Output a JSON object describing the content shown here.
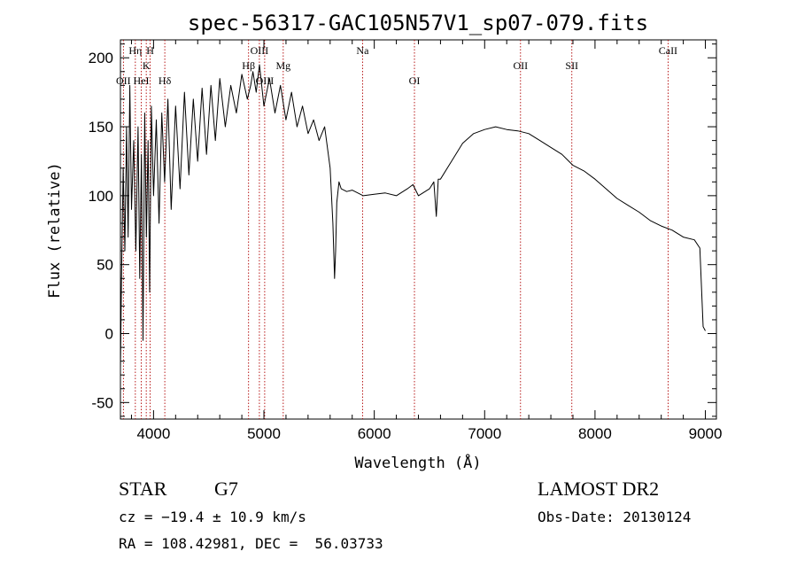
{
  "chart_data": {
    "type": "line",
    "title": "spec-56317-GAC105N57V1_sp07-079.fits",
    "xlabel": "Wavelength (Å)",
    "ylabel": "Flux (relative)",
    "xlim": [
      3700,
      9100
    ],
    "ylim": [
      -62,
      213
    ],
    "xticks": [
      4000,
      5000,
      6000,
      7000,
      8000,
      9000
    ],
    "yticks": [
      -50,
      0,
      50,
      100,
      150,
      200
    ],
    "grid": false,
    "series": [
      {
        "x": [
          3700,
          3710,
          3725,
          3740,
          3755,
          3770,
          3785,
          3800,
          3820,
          3840,
          3860,
          3875,
          3890,
          3905,
          3920,
          3935,
          3950,
          3965,
          3980,
          4000,
          4025,
          4050,
          4075,
          4100,
          4130,
          4160,
          4200,
          4240,
          4280,
          4320,
          4360,
          4400,
          4440,
          4480,
          4520,
          4560,
          4600,
          4650,
          4700,
          4750,
          4800,
          4850,
          4880,
          4900,
          4930,
          4960,
          5000,
          5050,
          5100,
          5150,
          5200,
          5250,
          5300,
          5350,
          5400,
          5450,
          5500,
          5550,
          5600,
          5625,
          5640,
          5650,
          5660,
          5680,
          5700,
          5750,
          5800,
          5900,
          6000,
          6100,
          6200,
          6300,
          6350,
          6400,
          6500,
          6540,
          6562,
          6580,
          6600,
          6700,
          6800,
          6900,
          7000,
          7100,
          7200,
          7300,
          7400,
          7500,
          7600,
          7700,
          7800,
          7900,
          8000,
          8100,
          8200,
          8300,
          8400,
          8500,
          8600,
          8700,
          8800,
          8900,
          8950,
          8980,
          9000
        ],
        "y": [
          -25,
          40,
          120,
          60,
          150,
          70,
          180,
          90,
          140,
          60,
          150,
          40,
          130,
          -5,
          160,
          70,
          140,
          30,
          165,
          100,
          155,
          80,
          160,
          110,
          170,
          90,
          165,
          105,
          175,
          115,
          170,
          125,
          178,
          130,
          180,
          140,
          185,
          150,
          180,
          160,
          188,
          170,
          180,
          190,
          175,
          195,
          165,
          185,
          160,
          180,
          155,
          175,
          150,
          165,
          145,
          155,
          140,
          150,
          120,
          80,
          40,
          60,
          95,
          110,
          105,
          103,
          104,
          100,
          101,
          102,
          100,
          105,
          108,
          100,
          105,
          110,
          85,
          112,
          112,
          125,
          138,
          145,
          148,
          150,
          148,
          147,
          145,
          140,
          135,
          130,
          122,
          118,
          112,
          105,
          98,
          93,
          88,
          82,
          78,
          75,
          70,
          68,
          62,
          5,
          2
        ]
      }
    ],
    "spectral_lines": [
      {
        "label": "OII",
        "x": 3727,
        "row": 3
      },
      {
        "label": "Hη",
        "x": 3835,
        "row": 1
      },
      {
        "label": "HeI",
        "x": 3889,
        "row": 3
      },
      {
        "label": "K",
        "x": 3934,
        "row": 2
      },
      {
        "label": "H",
        "x": 3969,
        "row": 1
      },
      {
        "label": "Hδ",
        "x": 4102,
        "row": 3
      },
      {
        "label": "Hβ",
        "x": 4861,
        "row": 2
      },
      {
        "label": "OIII",
        "x": 4959,
        "row": 1
      },
      {
        "label": "OIII",
        "x": 5007,
        "row": 3
      },
      {
        "label": "Mg",
        "x": 5175,
        "row": 2
      },
      {
        "label": "Na",
        "x": 5894,
        "row": 1
      },
      {
        "label": "OI",
        "x": 6364,
        "row": 3
      },
      {
        "label": "OII",
        "x": 7325,
        "row": 2
      },
      {
        "label": "SII",
        "x": 7790,
        "row": 2
      },
      {
        "label": "CaII",
        "x": 8662,
        "row": 1
      }
    ]
  },
  "info": {
    "class": "STAR",
    "subclass": "G7",
    "survey": "LAMOST DR2",
    "cz": "cz = −19.4 ± 10.9 km/s",
    "obs_date": "Obs-Date: 20130124",
    "radec": "RA = 108.42981, DEC =  56.03733"
  }
}
